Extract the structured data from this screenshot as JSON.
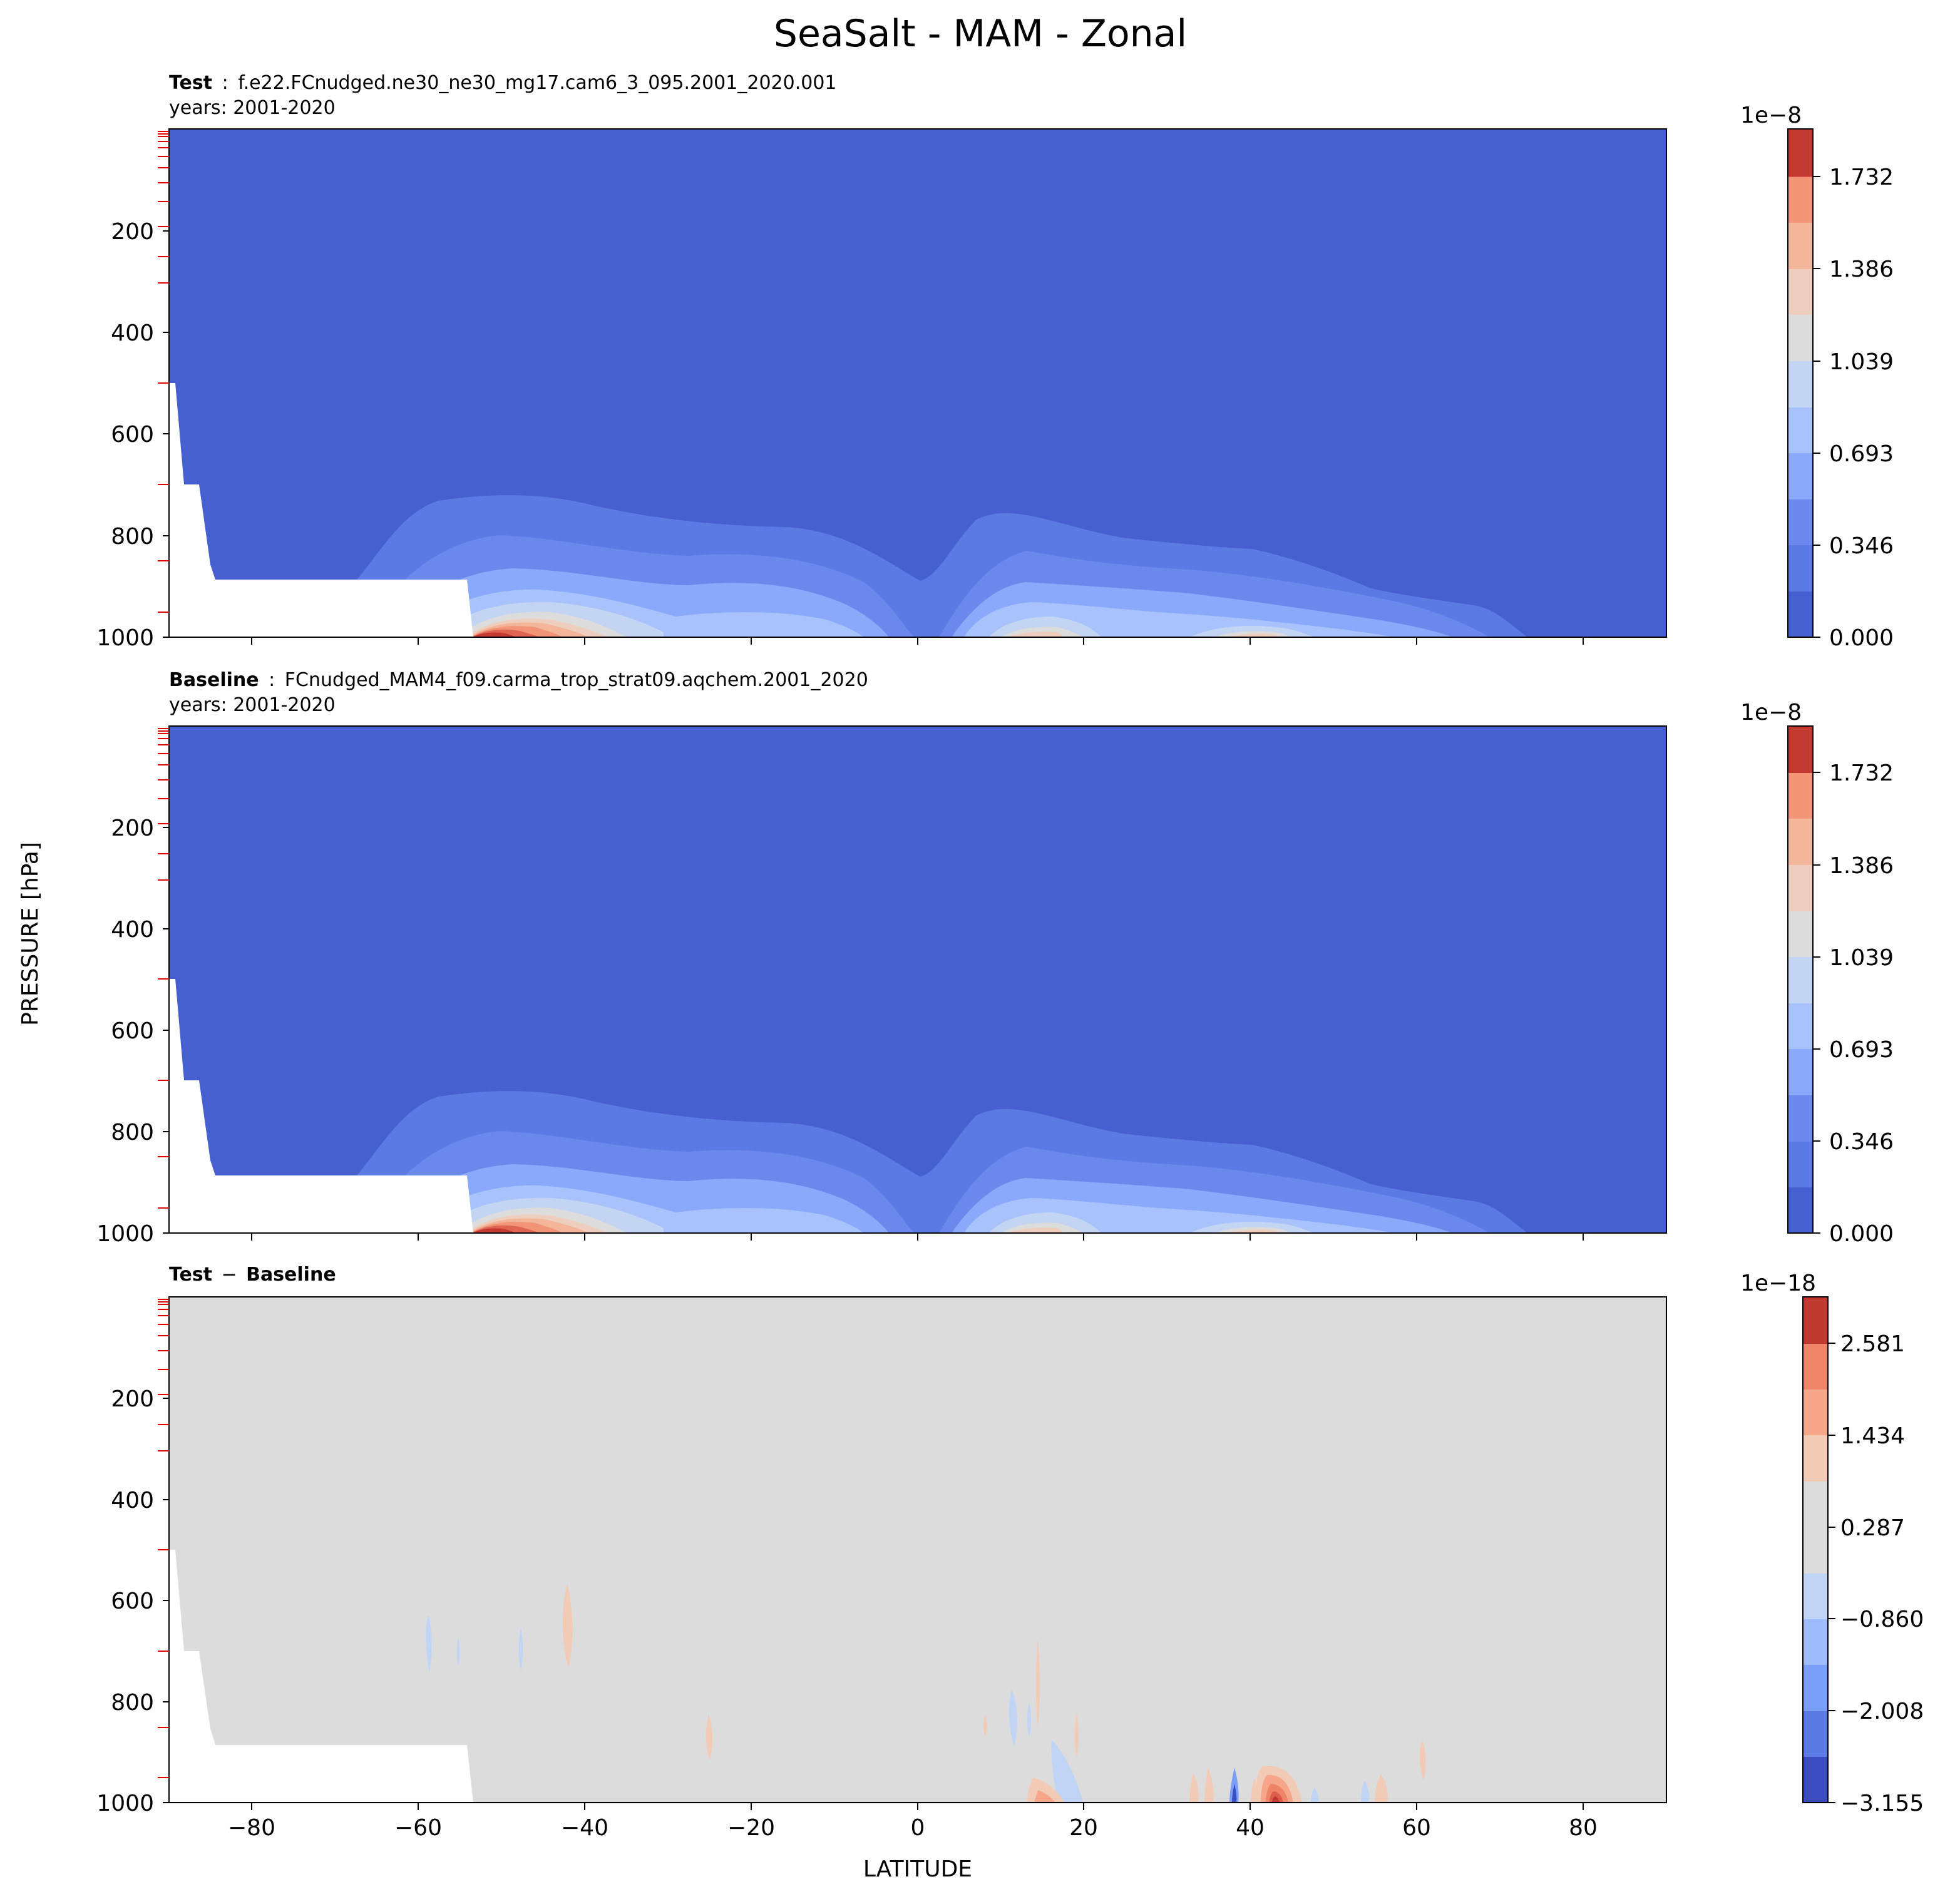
{
  "figure": {
    "title": "SeaSalt - MAM - Zonal",
    "ylabel": "PRESSURE [hPa]",
    "xlabel": "LATITUDE"
  },
  "chart_data": [
    {
      "type": "heatmap",
      "panel": "test",
      "header_bold": "Test",
      "header_sep": ":",
      "header_text": "f.e22.FCnudged.ne30_ne30_mg17.cam6_3_095.2001_2020.001",
      "years_text": "years: 2001-2020",
      "xlim": [
        -90,
        90
      ],
      "xticks": [
        -80,
        -60,
        -40,
        -20,
        0,
        20,
        40,
        60,
        80
      ],
      "ylim": [
        1000,
        0
      ],
      "yticks": [
        200,
        400,
        600,
        800,
        1000
      ],
      "colorbar": {
        "exponent": "1e−8",
        "ticks": [
          "0.000",
          "0.346",
          "0.693",
          "1.039",
          "1.386",
          "1.732"
        ],
        "levels": 12,
        "colors": [
          "#4760d0",
          "#5b7ae3",
          "#6b89ec",
          "#8aa9fa",
          "#a8c2fb",
          "#c4d4f3",
          "#dcdcdc",
          "#eecfbf",
          "#f4b69a",
          "#f29576",
          "#df6552",
          "#c43a31"
        ]
      }
    },
    {
      "type": "heatmap",
      "panel": "baseline",
      "header_bold": "Baseline",
      "header_sep": ":",
      "header_text": "FCnudged_MAM4_f09.carma_trop_strat09.aqchem.2001_2020",
      "years_text": "years: 2001-2020",
      "xlim": [
        -90,
        90
      ],
      "xticks": [
        -80,
        -60,
        -40,
        -20,
        0,
        20,
        40,
        60,
        80
      ],
      "ylim": [
        1000,
        0
      ],
      "yticks": [
        200,
        400,
        600,
        800,
        1000
      ],
      "colorbar": {
        "exponent": "1e−8",
        "ticks": [
          "0.000",
          "0.346",
          "0.693",
          "1.039",
          "1.386",
          "1.732"
        ],
        "levels": 12,
        "colors": [
          "#4760d0",
          "#5b7ae3",
          "#6b89ec",
          "#8aa9fa",
          "#a8c2fb",
          "#c4d4f3",
          "#dcdcdc",
          "#eecfbf",
          "#f4b69a",
          "#f29576",
          "#df6552",
          "#c43a31"
        ]
      }
    },
    {
      "type": "heatmap",
      "panel": "difference",
      "header_bold_a": "Test",
      "header_sep": "−",
      "header_bold_b": "Baseline",
      "xlim": [
        -90,
        90
      ],
      "xticks": [
        -80,
        -60,
        -40,
        -20,
        0,
        20,
        40,
        60,
        80
      ],
      "ylim": [
        1000,
        0
      ],
      "yticks": [
        200,
        400,
        600,
        800,
        1000
      ],
      "colorbar": {
        "exponent": "1e−18",
        "ticks": [
          "−3.155",
          "−2.008",
          "−0.860",
          "0.287",
          "1.434",
          "2.581"
        ],
        "levels": 11,
        "colors": [
          "#3b4cc0",
          "#5b7ae3",
          "#7b9ff9",
          "#9ebcfd",
          "#c0d4f5",
          "#dcdcdc",
          "#f2cbb7",
          "#f6a789",
          "#ee8468",
          "#dc5d4a",
          "#c03a31"
        ]
      }
    }
  ]
}
